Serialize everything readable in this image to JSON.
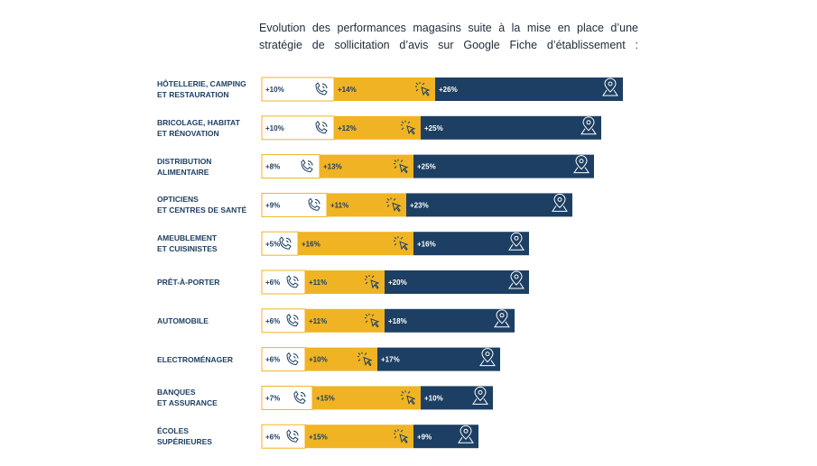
{
  "chart_data": {
    "type": "stacked-bar-horizontal",
    "title": "Evolution des performances magasins suite à la mise en place d’une stratégie de sollicitation d’avis sur Google Fiche d’établissement :",
    "categories": [
      "HÔTELLERIE, CAMPING\nET RESTAURATION",
      "BRICOLAGE, HABITAT\nET RÉNOVATION",
      "DISTRIBUTION\nALIMENTAIRE",
      "OPTICIENS\nET CENTRES DE SANTÉ",
      "AMEUBLEMENT\nET CUISINISTES",
      "PRÊT-À-PORTER",
      "AUTOMOBILE",
      "ELECTROMÉNAGER",
      "BANQUES\nET ASSURANCE",
      "ÉCOLES\nSUPÉRIEURES"
    ],
    "xlim": [
      0,
      60
    ],
    "series": [
      {
        "color": "#ffffff",
        "values": [
          10,
          10,
          8,
          9,
          5,
          6,
          6,
          6,
          7,
          6
        ],
        "value_labels": [
          "+10%",
          "+10%",
          "+8%",
          "+9%",
          "+5%",
          "+6%",
          "+6%",
          "+6%",
          "+7%",
          "+6%"
        ]
      },
      {
        "color": "#f0b323",
        "values": [
          14,
          12,
          13,
          11,
          16,
          11,
          11,
          10,
          15,
          15
        ],
        "value_labels": [
          "+14%",
          "+12%",
          "+13%",
          "+11%",
          "+16%",
          "+11%",
          "+11%",
          "+10%",
          "+15%",
          "+15%"
        ]
      },
      {
        "color": "#1d3f63",
        "values": [
          26,
          25,
          25,
          23,
          16,
          20,
          18,
          17,
          10,
          9
        ],
        "value_labels": [
          "+26%",
          "+25%",
          "+25%",
          "+23%",
          "+16%",
          "+20%",
          "+18%",
          "+17%",
          "+10%",
          "+9%"
        ]
      }
    ]
  }
}
